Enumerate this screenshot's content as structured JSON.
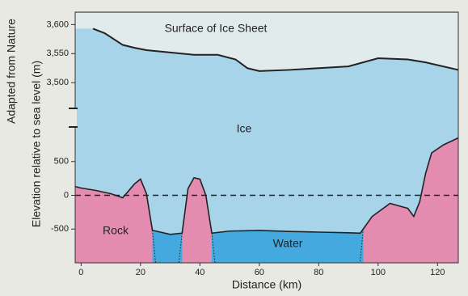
{
  "credit": "Adapted from Nature",
  "chart_data": [
    {
      "type": "surface",
      "title": "Surface of Ice Sheet",
      "x": [
        4,
        8,
        14,
        18,
        22,
        30,
        38,
        46,
        52,
        56,
        60,
        70,
        80,
        90,
        100,
        110,
        116,
        127
      ],
      "values": [
        3593,
        3585,
        3565,
        3560,
        3556,
        3552,
        3548,
        3548,
        3540,
        3525,
        3520,
        3522,
        3525,
        3528,
        3542,
        3540,
        3535,
        3522
      ],
      "xlim": [
        -2,
        127
      ],
      "ylim": [
        3460,
        3620
      ],
      "yticks": [
        {
          "value": 3500,
          "label": "3,500"
        },
        {
          "value": 3550,
          "label": "3,550"
        },
        {
          "value": 3600,
          "label": "3,600"
        }
      ],
      "color": "#222222",
      "fill": "#a8d4ea",
      "above_fill": "#e2ebec"
    },
    {
      "type": "bed",
      "xlabel": "Distance (km)",
      "ylabel": "Elevation relative to sea level (m)",
      "annotations": [
        "Ice",
        "Rock",
        "Water"
      ],
      "x": [
        -2,
        0,
        5,
        10,
        14,
        18,
        20,
        22,
        24,
        30,
        34,
        36,
        38,
        40,
        42,
        44,
        50,
        60,
        70,
        80,
        90,
        94,
        98,
        104,
        110,
        112,
        114,
        116,
        118,
        122,
        127
      ],
      "values": [
        130,
        108,
        72,
        24,
        -36,
        169,
        240,
        24,
        -518,
        -578,
        -560,
        100,
        260,
        240,
        0,
        -560,
        -530,
        -520,
        -535,
        -545,
        -555,
        -560,
        -313,
        -120,
        -193,
        -313,
        -96,
        325,
        627,
        747,
        850
      ],
      "water_spans": [
        [
          24,
          34
        ],
        [
          44,
          95
        ]
      ],
      "xlim": [
        -2,
        127
      ],
      "ylim": [
        -1000,
        1000
      ],
      "xticks": [
        0,
        20,
        40,
        60,
        80,
        100,
        120
      ],
      "yticks": [
        -500,
        0,
        500
      ],
      "zero_line": true,
      "color": "#222222",
      "fill": "#e48cb0",
      "water_color": "#44a9de"
    }
  ]
}
